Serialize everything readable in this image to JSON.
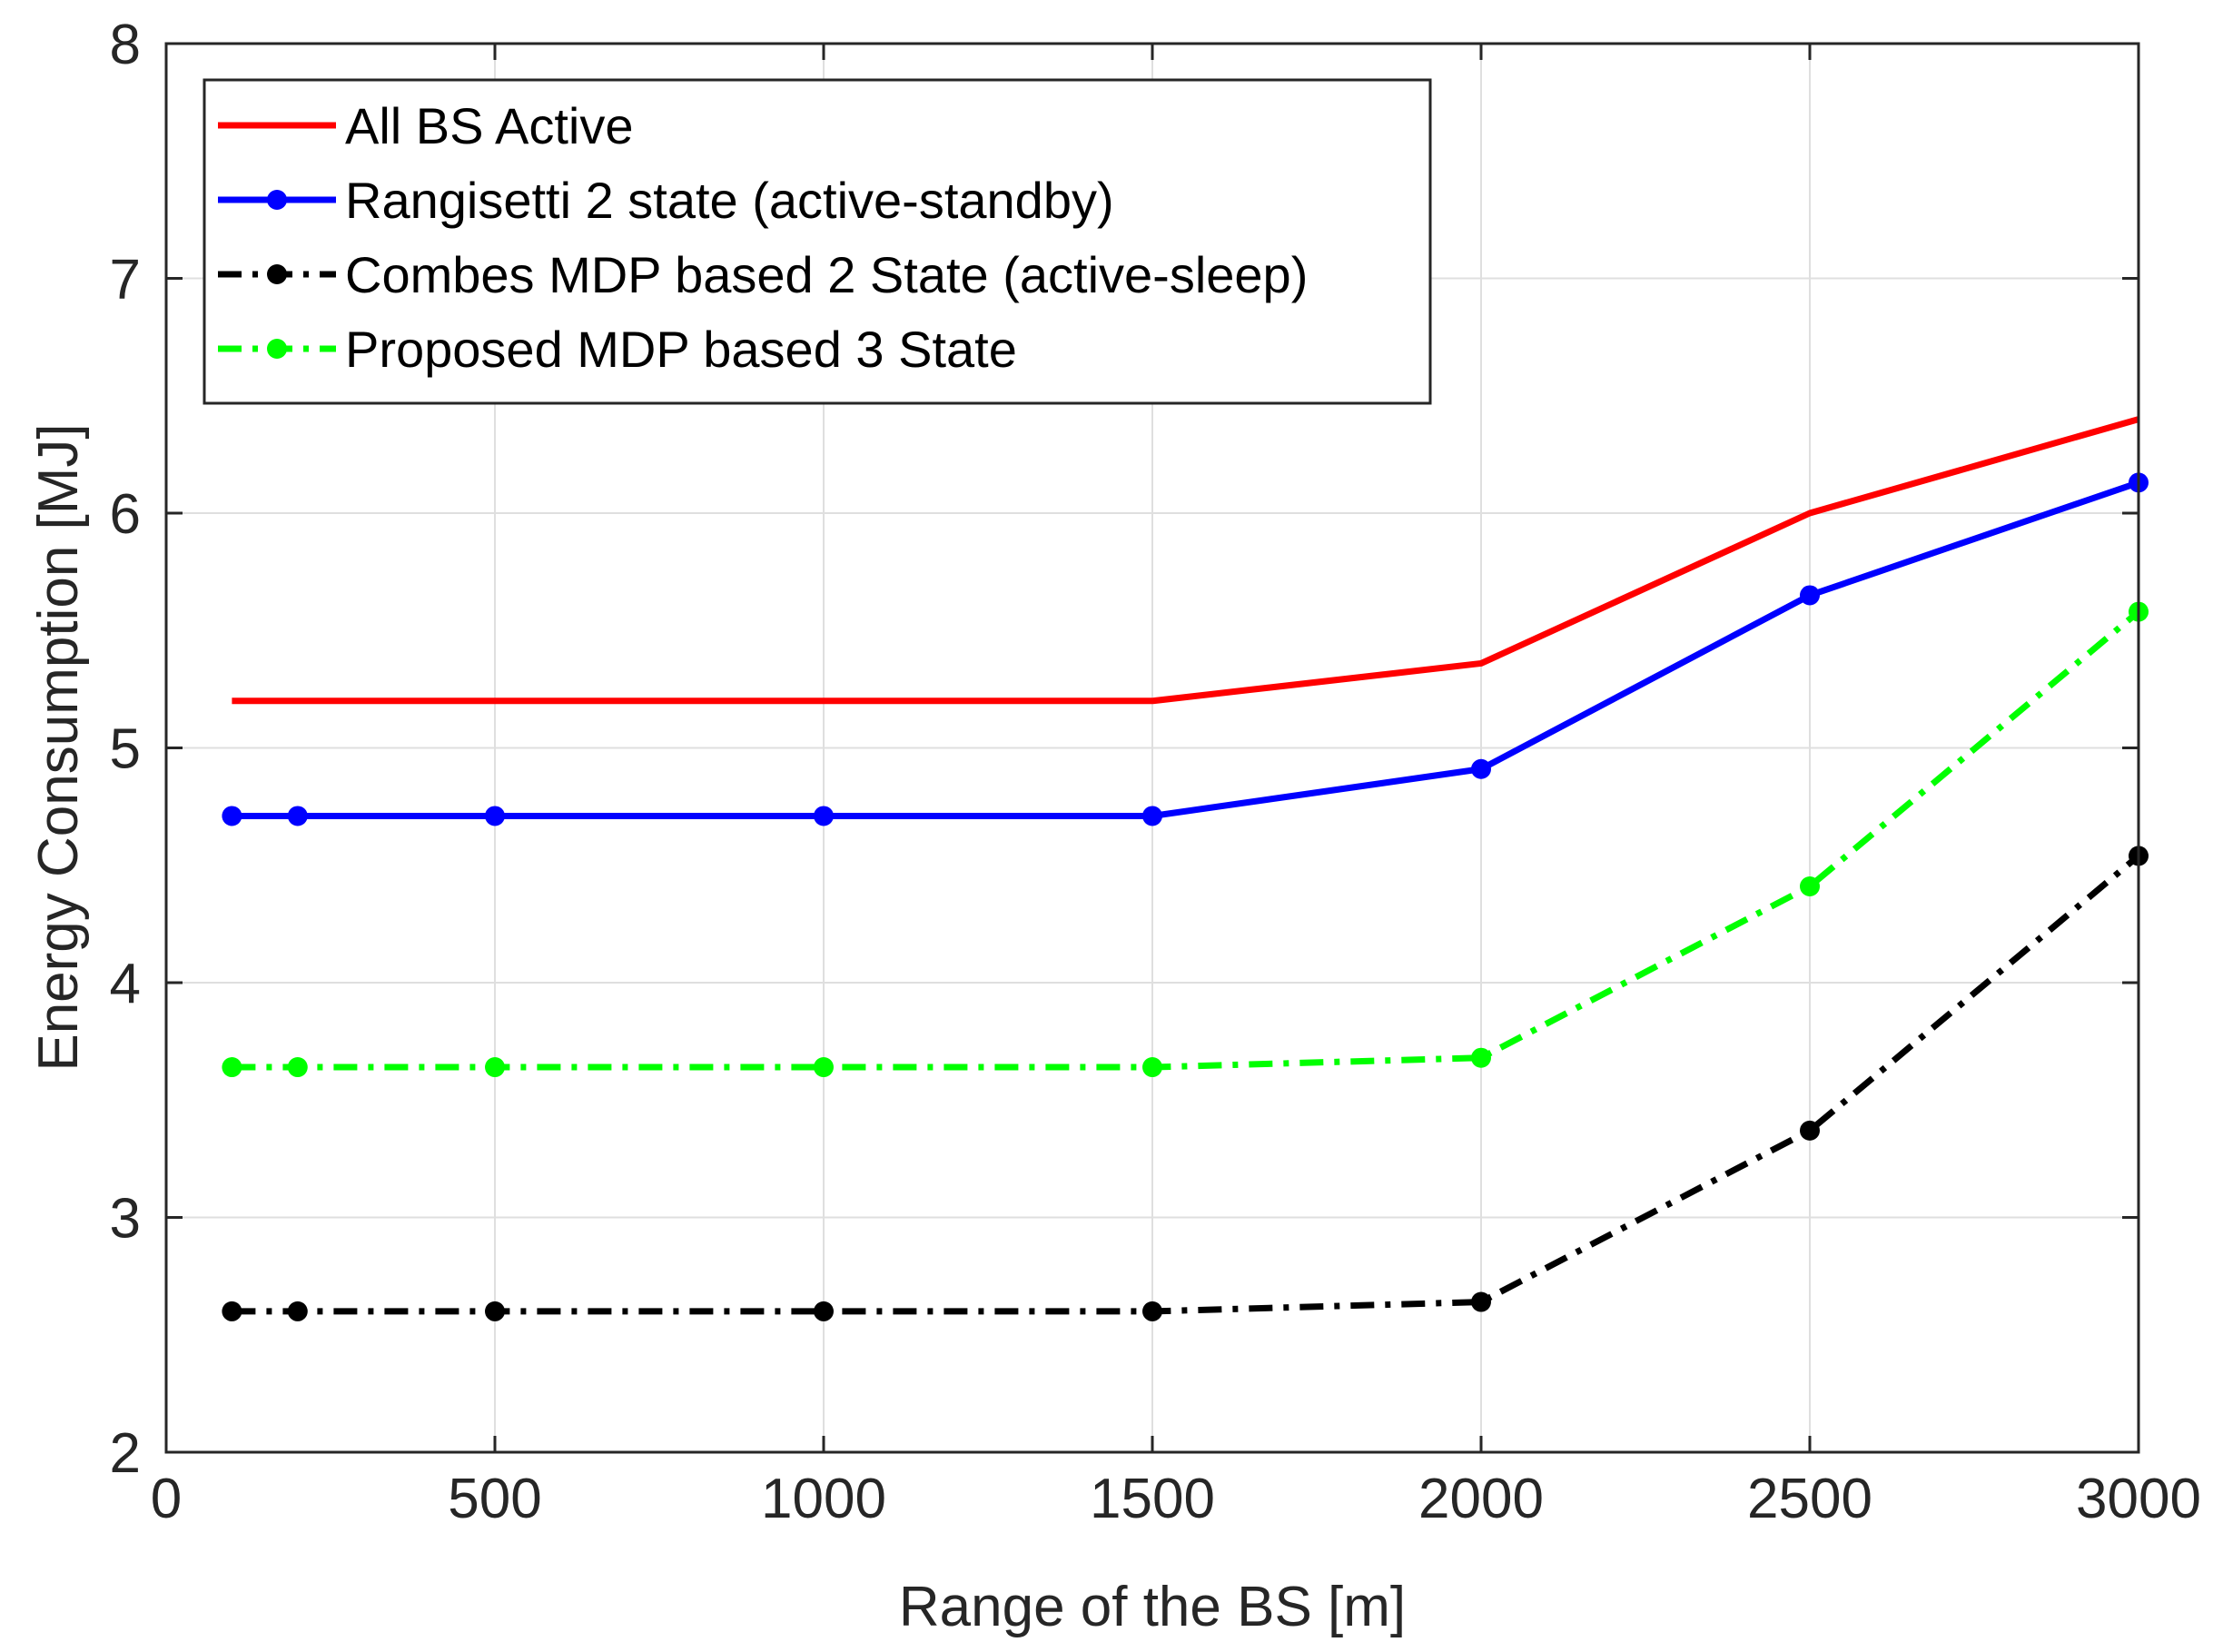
{
  "chart_data": {
    "type": "line",
    "title": "",
    "xlabel": "Range of the BS [m]",
    "ylabel": "Energy Consumption [MJ]",
    "xlim": [
      0,
      3000
    ],
    "ylim": [
      2,
      8
    ],
    "xticks": [
      0,
      500,
      1000,
      1500,
      2000,
      2500,
      3000
    ],
    "yticks": [
      2,
      3,
      4,
      5,
      6,
      7,
      8
    ],
    "xtick_labels": [
      "0",
      "500",
      "1000",
      "1500",
      "2000",
      "2500",
      "3000"
    ],
    "ytick_labels": [
      "2",
      "3",
      "4",
      "5",
      "6",
      "7",
      "8"
    ],
    "grid": true,
    "legend_position": "top-left",
    "x": [
      100,
      200,
      500,
      1000,
      1500,
      2000,
      2500,
      3000
    ],
    "series": [
      {
        "name": "All BS Active",
        "values": [
          5.2,
          5.2,
          5.2,
          5.2,
          5.2,
          5.36,
          6.0,
          6.4
        ],
        "color": "#ff0000",
        "dash": "solid",
        "markers": false
      },
      {
        "name": "Rangisetti 2 state (active-standby)",
        "values": [
          4.71,
          4.71,
          4.71,
          4.71,
          4.71,
          4.91,
          5.65,
          6.13
        ],
        "color": "#0000ff",
        "dash": "solid",
        "markers": true
      },
      {
        "name": "Combes MDP based 2 State (active-sleep)",
        "values": [
          2.6,
          2.6,
          2.6,
          2.6,
          2.6,
          2.64,
          3.37,
          4.54
        ],
        "color": "#000000",
        "dash": "dashdot",
        "markers": true
      },
      {
        "name": "Proposed MDP based 3 State",
        "values": [
          3.64,
          3.64,
          3.64,
          3.64,
          3.64,
          3.68,
          4.41,
          5.58
        ],
        "color": "#00ff00",
        "dash": "dashdot",
        "markers": true
      }
    ]
  }
}
